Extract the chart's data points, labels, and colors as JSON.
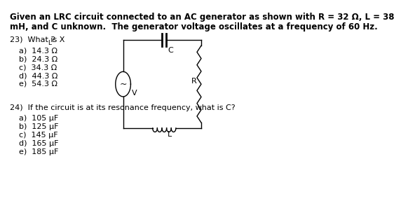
{
  "title_line1": "Given an LRC circuit connected to an AC generator as shown with R = 32 Ω, L = 38",
  "title_line2": "mH, and C unknown.  The generator voltage oscillates at a frequency of 60 Hz.",
  "q23_label": "23)  What is X",
  "q23_sub": "L",
  "q23_end": "?",
  "q23_options": [
    "a)  14.3 Ω",
    "b)  24.3 Ω",
    "c)  34.3 Ω",
    "d)  44.3 Ω",
    "e)  54.3 Ω"
  ],
  "q24_label": "24)  If the circuit is at its resonance frequency, what is C?",
  "q24_options": [
    "a)  105 μF",
    "b)  125 μF",
    "c)  145 μF",
    "d)  165 μF",
    "e)  185 μF"
  ],
  "bg_color": "#ffffff",
  "text_color": "#000000",
  "font_size_title": 8.5,
  "font_size_body": 8.0,
  "circuit_label_C": "C",
  "circuit_label_R": "R",
  "circuit_label_L": "L",
  "circuit_label_V": "V"
}
